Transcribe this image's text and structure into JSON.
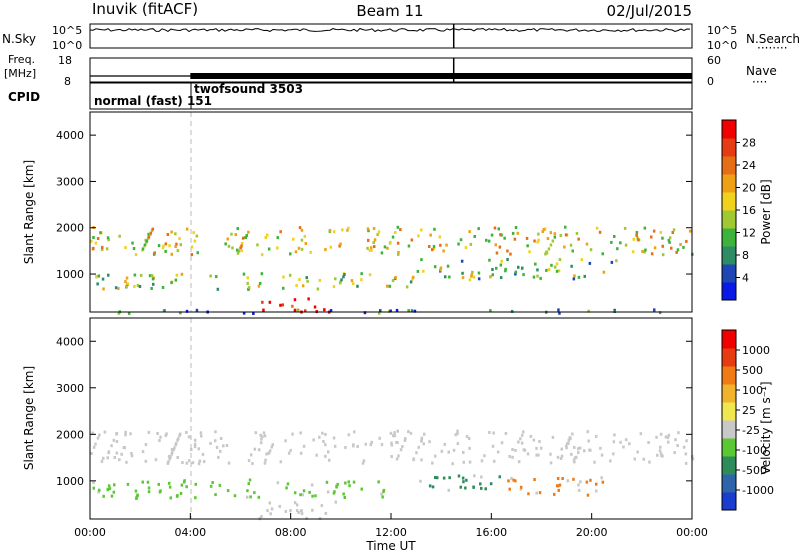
{
  "header": {
    "station": "Inuvik (fitACF)",
    "beam": "Beam 11",
    "date": "02/Jul/2015"
  },
  "chart_data": [
    {
      "type": "line",
      "id": "noise",
      "left_label": "N.Sky",
      "right_label": "N.Search",
      "left_ticks": [
        "10^5",
        "10^0"
      ],
      "right_ticks": [
        "10^5",
        "10^0"
      ],
      "series": [
        {
          "name": "N.Sky",
          "level": 0.75
        },
        {
          "name": "N.Search",
          "level": 0.75
        }
      ]
    },
    {
      "type": "line",
      "id": "freq",
      "left_label_top": "Freq.",
      "left_label_bottom": "[MHz]",
      "right_label": "Nave",
      "left_ticks": [
        "18",
        "8"
      ],
      "right_ticks": [
        "60",
        "0"
      ],
      "series": [
        {
          "name": "Freq.",
          "values_mhz": [
            {
              "t0": 0,
              "t1": 24,
              "v": 10.5
            }
          ]
        }
      ]
    },
    {
      "type": "table",
      "id": "cpid",
      "label": "CPID",
      "modes": [
        {
          "name": "normal (fast) 151",
          "start_hour": 0
        },
        {
          "name": "twofsound 3503",
          "start_hour": 4
        }
      ]
    },
    {
      "type": "heatmap",
      "id": "power",
      "ylabel": "Slant Range [km]",
      "ylim": [
        180,
        4500
      ],
      "yticks": [
        "1000",
        "2000",
        "3000",
        "4000"
      ],
      "xlim_hours": [
        0,
        24
      ],
      "colorbar": {
        "label": "Power [dB]",
        "ticks": [
          "28",
          "24",
          "20",
          "16",
          "12",
          "8",
          "4"
        ],
        "colors": [
          "#0a1ae6",
          "#1e46b4",
          "#2d8c64",
          "#3cb43c",
          "#a0c832",
          "#f0d21e",
          "#f0a014",
          "#e66e14",
          "#e63c14",
          "#f00000"
        ]
      },
      "bands": [
        {
          "t0": 0,
          "t1": 24,
          "r0": 1450,
          "r1": 2050,
          "level": 0.55
        },
        {
          "t0": 0,
          "t1": 13,
          "r0": 700,
          "r1": 1050,
          "level": 0.45
        },
        {
          "t0": 13,
          "t1": 21,
          "r0": 900,
          "r1": 1350,
          "level": 0.4
        },
        {
          "t0": 6.8,
          "t1": 9.5,
          "r0": 200,
          "r1": 550,
          "level": 1.0
        },
        {
          "t0": 0,
          "t1": 24,
          "r0": 180,
          "r1": 260,
          "level": 0.2
        }
      ]
    },
    {
      "type": "heatmap",
      "id": "velocity",
      "xlabel": "Time UT",
      "ylabel": "Slant Range [km]",
      "ylim": [
        180,
        4500
      ],
      "yticks": [
        "1000",
        "2000",
        "3000",
        "4000"
      ],
      "xticks": [
        "00:00",
        "04:00",
        "08:00",
        "12:00",
        "16:00",
        "20:00",
        "00:00"
      ],
      "xlim_hours": [
        0,
        24
      ],
      "colorbar": {
        "label": "Velocity [m s⁻¹]",
        "ticks": [
          "1000",
          "500",
          "100",
          "25",
          "-25",
          "-100",
          "-500",
          "-1000"
        ],
        "colors": [
          "#1a3ccf",
          "#2e64aa",
          "#2e8c5a",
          "#5ac832",
          "#c8c8c8",
          "#f0e650",
          "#f0b42c",
          "#f07a14",
          "#e63c10",
          "#f00000"
        ]
      },
      "bands": [
        {
          "t0": 0,
          "t1": 24,
          "r0": 1400,
          "r1": 2100,
          "color": "#c8c8c8"
        },
        {
          "t0": 0,
          "t1": 12,
          "r0": 650,
          "r1": 1050,
          "color": "#5ac832"
        },
        {
          "t0": 13,
          "t1": 17,
          "r0": 800,
          "r1": 1150,
          "color": "#2e8c5a"
        },
        {
          "t0": 16.5,
          "t1": 20.5,
          "r0": 700,
          "r1": 1150,
          "color": "#f07a14"
        },
        {
          "t0": 6.5,
          "t1": 9.8,
          "r0": 200,
          "r1": 600,
          "color": "#c8c8c8"
        }
      ]
    }
  ]
}
